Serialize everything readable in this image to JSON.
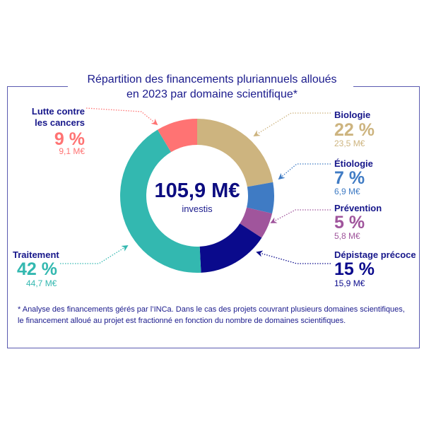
{
  "chart_data": {
    "type": "pie",
    "variant": "donut",
    "title": "Répartition des financements pluriannuels alloués en 2023 par domaine scientifique*",
    "title_lines": [
      "Répartition des financements pluriannuels alloués",
      "en 2023 par domaine scientifique*"
    ],
    "center": {
      "value": "105,9 M€",
      "label": "investis"
    },
    "unit": "M€",
    "slices": [
      {
        "name": "Biologie",
        "percent_label": "22 %",
        "amount_label": "23,5 M€",
        "value": 23.5,
        "percent": 22,
        "color": "#cdb47f"
      },
      {
        "name": "Étiologie",
        "percent_label": "7 %",
        "amount_label": "6,9 M€",
        "value": 6.9,
        "percent": 7,
        "color": "#3f7bc4"
      },
      {
        "name": "Prévention",
        "percent_label": "5 %",
        "amount_label": "5,8 M€",
        "value": 5.8,
        "percent": 5,
        "color": "#a0559c"
      },
      {
        "name": "Dépistage précoce",
        "percent_label": "15 %",
        "amount_label": "15,9 M€",
        "value": 15.9,
        "percent": 15,
        "color": "#0a0a8c"
      },
      {
        "name": "Traitement",
        "percent_label": "42 %",
        "amount_label": "44,7 M€",
        "value": 44.7,
        "percent": 42,
        "color": "#33b8b0"
      },
      {
        "name_lines": [
          "Lutte contre",
          "les cancers"
        ],
        "name": "Lutte contre les cancers",
        "percent_label": "9 %",
        "amount_label": "9,1 M€",
        "value": 9.1,
        "percent": 9,
        "color": "#ff7373"
      }
    ],
    "footnote_lines": [
      "* Analyse des financements gérés par l’INCa. Dans le cas des projets couvrant plusieurs domaines scientifiques,",
      "le financement alloué au projet est fractionné en fonction du nombre de domaines scientifiques."
    ]
  }
}
